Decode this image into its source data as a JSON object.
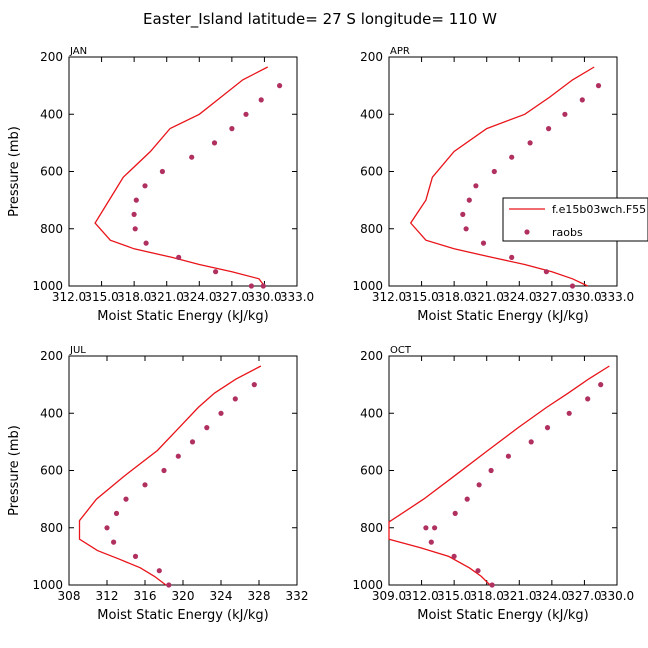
{
  "title": "Easter_Island  latitude= 27 S longitude= 110 W",
  "colors": {
    "model": "#e8141a",
    "obs": "#b03060",
    "axis": "#000000"
  },
  "chart_data": [
    {
      "type": "line",
      "panel": "JAN",
      "xlabel": "Moist Static Energy (kJ/kg)",
      "ylabel": "Pressure (mb)",
      "xlim": [
        312.0,
        333.0
      ],
      "ylim": [
        1000,
        200
      ],
      "xticks": [
        "312.0",
        "315.0",
        "318.0",
        "321.0",
        "324.0",
        "327.0",
        "330.0",
        "333.0"
      ],
      "yticks": [
        "200",
        "400",
        "600",
        "800",
        "1000"
      ],
      "series": [
        {
          "name": "f.e15b03wch.F55",
          "kind": "line",
          "x": [
            330.3,
            328.0,
            326.0,
            324.0,
            321.3,
            319.5,
            317.0,
            315.7,
            314.4,
            315.8,
            318.0,
            321.5,
            324.0,
            327.0,
            329.5,
            330.0
          ],
          "y": [
            235,
            280,
            340,
            400,
            450,
            530,
            620,
            700,
            780,
            840,
            870,
            900,
            925,
            950,
            975,
            1000
          ]
        },
        {
          "name": "raobs",
          "kind": "scatter",
          "x": [
            331.4,
            329.7,
            328.3,
            327.0,
            325.4,
            323.3,
            320.6,
            319.0,
            318.2,
            318.0,
            318.1,
            319.1,
            322.1,
            325.5,
            328.8,
            329.9
          ],
          "y": [
            300,
            350,
            400,
            450,
            500,
            550,
            600,
            650,
            700,
            750,
            800,
            850,
            900,
            950,
            1000,
            1000
          ]
        }
      ]
    },
    {
      "type": "line",
      "panel": "APR",
      "xlabel": "Moist Static Energy (kJ/kg)",
      "ylabel": "",
      "xlim": [
        312.0,
        333.0
      ],
      "ylim": [
        1000,
        200
      ],
      "xticks": [
        "312.0",
        "315.0",
        "318.0",
        "321.0",
        "324.0",
        "327.0",
        "330.0",
        "333.0"
      ],
      "yticks": [
        "200",
        "400",
        "600",
        "800",
        "1000"
      ],
      "series": [
        {
          "name": "f.e15b03wch.F55",
          "kind": "line",
          "x": [
            330.9,
            328.9,
            326.8,
            324.5,
            321.0,
            318.0,
            316.0,
            315.4,
            314.0,
            315.4,
            318.0,
            321.5,
            324.5,
            327.0,
            328.9,
            330.3
          ],
          "y": [
            235,
            280,
            340,
            400,
            450,
            530,
            620,
            700,
            780,
            840,
            870,
            900,
            925,
            950,
            975,
            1000
          ]
        },
        {
          "name": "raobs",
          "kind": "scatter",
          "x": [
            331.3,
            329.8,
            328.2,
            326.7,
            325.0,
            323.3,
            321.7,
            320.0,
            319.4,
            318.8,
            319.1,
            320.7,
            323.3,
            326.5,
            328.9
          ],
          "y": [
            300,
            350,
            400,
            450,
            500,
            550,
            600,
            650,
            700,
            750,
            800,
            850,
            900,
            950,
            1000
          ]
        }
      ]
    },
    {
      "type": "line",
      "panel": "JUL",
      "xlabel": "Moist Static Energy (kJ/kg)",
      "ylabel": "Pressure (mb)",
      "xlim": [
        308,
        332
      ],
      "ylim": [
        1000,
        200
      ],
      "xticks": [
        "308",
        "312",
        "316",
        "320",
        "324",
        "328",
        "332"
      ],
      "yticks": [
        "200",
        "400",
        "600",
        "800",
        "1000"
      ],
      "series": [
        {
          "name": "f.e15b03wch.F55",
          "kind": "line",
          "x": [
            328.2,
            325.6,
            323.3,
            321.6,
            319.6,
            317.3,
            313.8,
            310.9,
            309.1,
            309.1,
            311.0,
            313.3,
            315.5,
            317.0,
            318.2
          ],
          "y": [
            235,
            280,
            330,
            380,
            450,
            530,
            620,
            700,
            775,
            840,
            880,
            910,
            940,
            970,
            1000
          ]
        },
        {
          "name": "raobs",
          "kind": "scatter",
          "x": [
            327.5,
            325.5,
            324.0,
            322.5,
            321.0,
            319.5,
            318.0,
            316.0,
            314.0,
            313.0,
            312.0,
            312.7,
            315.0,
            317.5,
            318.5
          ],
          "y": [
            300,
            350,
            400,
            450,
            500,
            550,
            600,
            650,
            700,
            750,
            800,
            850,
            900,
            950,
            1000
          ]
        }
      ]
    },
    {
      "type": "line",
      "panel": "OCT",
      "xlabel": "Moist Static Energy (kJ/kg)",
      "ylabel": "",
      "xlim": [
        309.0,
        330.0
      ],
      "ylim": [
        1000,
        200
      ],
      "xticks": [
        "309.0",
        "312.0",
        "315.0",
        "318.0",
        "321.0",
        "324.0",
        "327.0",
        "330.0"
      ],
      "yticks": [
        "200",
        "400",
        "600",
        "800",
        "1000"
      ],
      "series": [
        {
          "name": "f.e15b03wch.F55",
          "kind": "line",
          "x": [
            329.3,
            327.4,
            325.5,
            323.5,
            320.9,
            318.1,
            315.0,
            312.2,
            309.0,
            309.0,
            311.9,
            314.5,
            316.4,
            317.5,
            318.3
          ],
          "y": [
            235,
            280,
            330,
            380,
            450,
            530,
            620,
            700,
            780,
            840,
            870,
            900,
            940,
            970,
            1000
          ]
        },
        {
          "name": "raobs",
          "kind": "scatter",
          "x": [
            328.5,
            327.3,
            325.6,
            323.6,
            322.1,
            320.0,
            318.4,
            317.3,
            316.2,
            315.1,
            313.2,
            312.4,
            312.9,
            315.0,
            317.2,
            318.5
          ],
          "y": [
            300,
            350,
            400,
            450,
            500,
            550,
            600,
            650,
            700,
            750,
            800,
            800,
            850,
            900,
            950,
            1000
          ]
        }
      ]
    }
  ],
  "legend": [
    {
      "label": "f.e15b03wch.F55",
      "kind": "line"
    },
    {
      "label": "raobs",
      "kind": "marker"
    }
  ]
}
